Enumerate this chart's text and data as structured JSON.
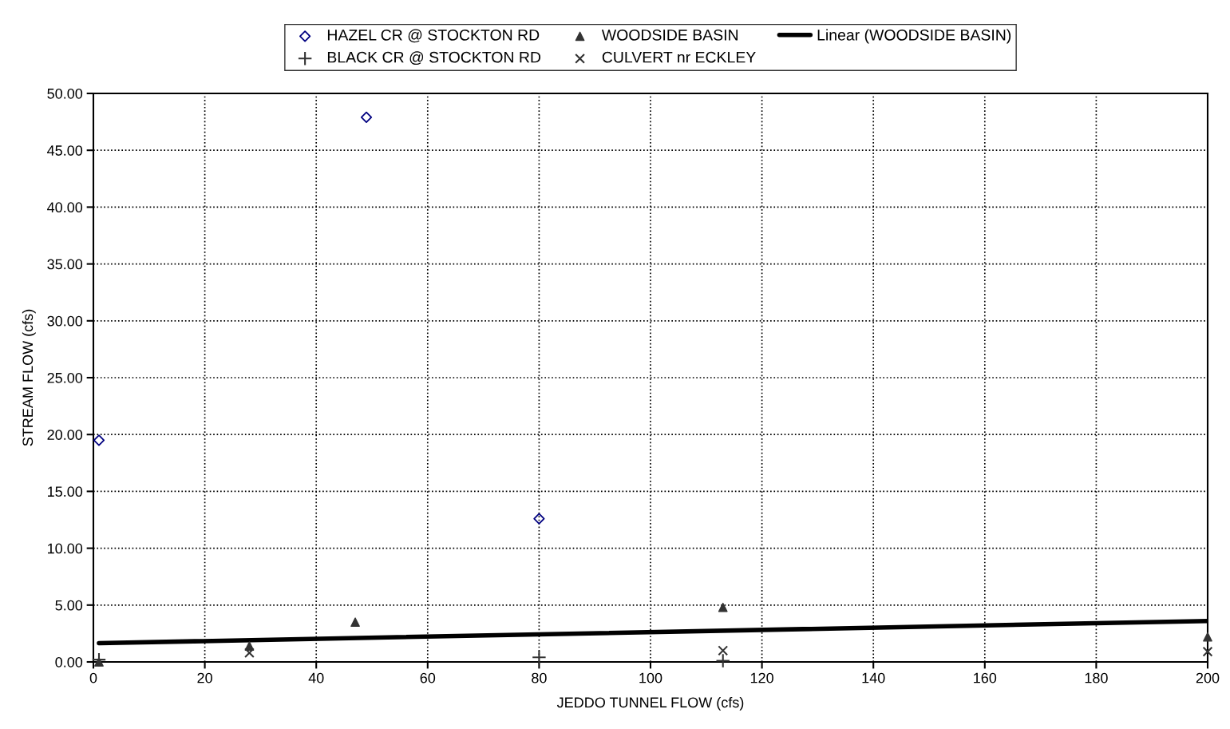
{
  "chart_data": {
    "type": "scatter",
    "xlabel": "JEDDO TUNNEL FLOW (cfs)",
    "ylabel": "STREAM FLOW (cfs)",
    "xlim": [
      0,
      200
    ],
    "xticks": [
      0,
      20,
      40,
      60,
      80,
      100,
      120,
      140,
      160,
      180,
      200
    ],
    "ylim": [
      0,
      50
    ],
    "yticks": [
      {
        "value": 0,
        "label": "0.00"
      },
      {
        "value": 5,
        "label": "5.00"
      },
      {
        "value": 10,
        "label": "10.00"
      },
      {
        "value": 15,
        "label": "15.00"
      },
      {
        "value": 20,
        "label": "20.00"
      },
      {
        "value": 25,
        "label": "25.00"
      },
      {
        "value": 30,
        "label": "30.00"
      },
      {
        "value": 35,
        "label": "35.00"
      },
      {
        "value": 40,
        "label": "40.00"
      },
      {
        "value": 45,
        "label": "45.00"
      },
      {
        "value": 50,
        "label": "50.00"
      }
    ],
    "grid": true,
    "legend": "top",
    "series": [
      {
        "name": "HAZEL CR @ STOCKTON RD",
        "color": "#000080",
        "marker": "diamond",
        "x": [
          1,
          49,
          80
        ],
        "values": [
          19.5,
          47.9,
          12.6
        ]
      },
      {
        "name": "BLACK CR @ STOCKTON RD",
        "color": "#333333",
        "marker": "cross",
        "x": [
          1,
          80,
          113
        ],
        "values": [
          0.2,
          0.4,
          0.1
        ]
      },
      {
        "name": "WOODSIDE BASIN",
        "color": "#333333",
        "marker": "triangle",
        "x": [
          1,
          28,
          47,
          113,
          200
        ],
        "values": [
          0,
          1.4,
          3.5,
          4.8,
          2.2
        ]
      },
      {
        "name": "CULVERT nr ECKLEY",
        "color": "#333333",
        "marker": "x",
        "x": [
          28,
          113,
          200
        ],
        "values": [
          0.8,
          1.0,
          0.9
        ]
      },
      {
        "name": "Linear (WOODSIDE BASIN)",
        "type": "line",
        "color": "#000000",
        "marker": "none",
        "line_style": "solid",
        "x": [
          1,
          200
        ],
        "values": [
          1.65,
          3.6
        ]
      }
    ]
  }
}
